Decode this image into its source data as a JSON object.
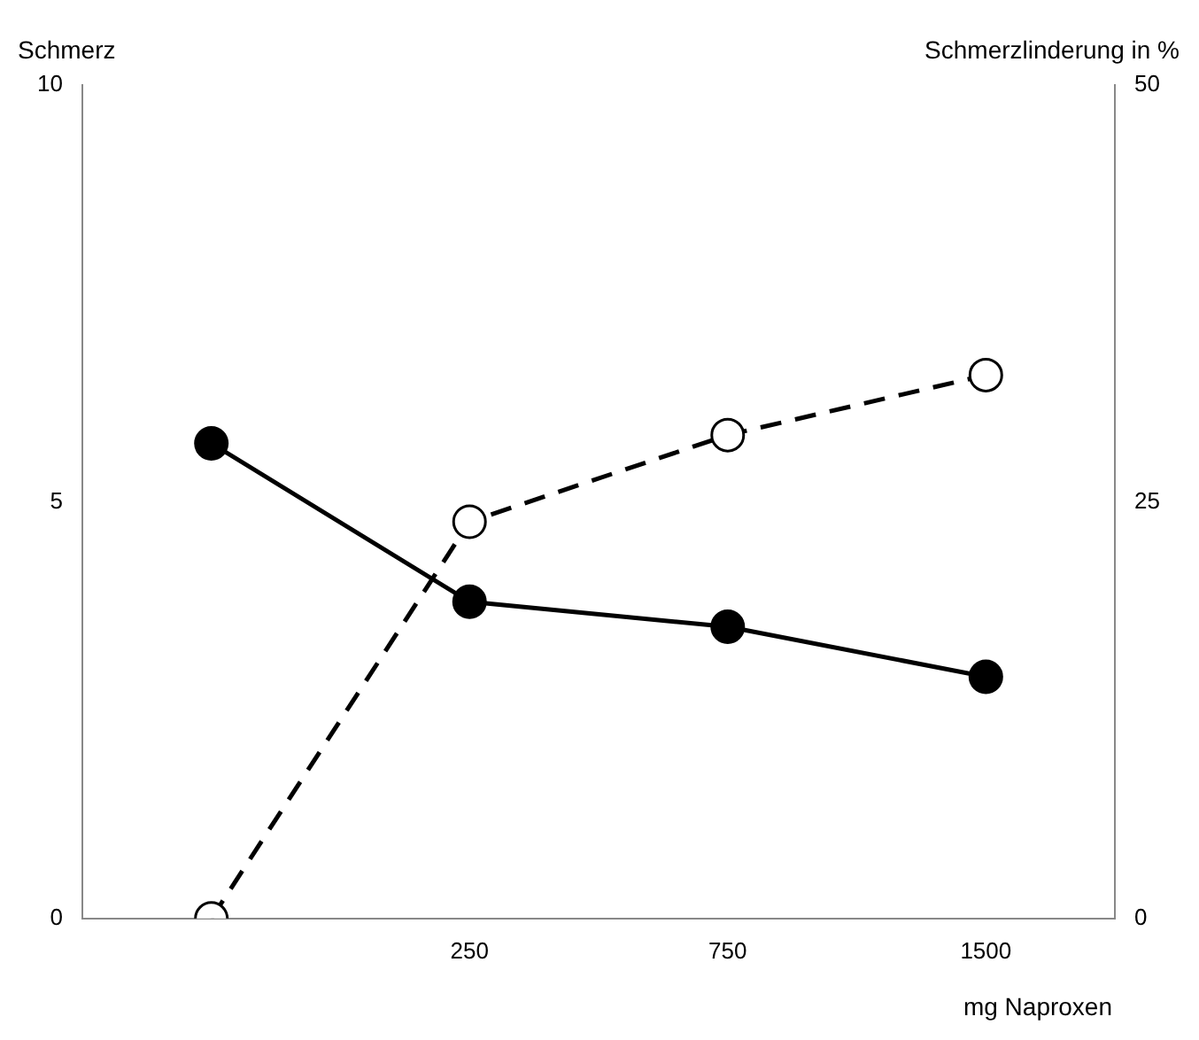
{
  "chart_data": {
    "type": "line",
    "ylabel": "Schmerz",
    "y2label": "Schmerzlinderung in %",
    "xlabel": "mg Naproxen",
    "categories": [
      null,
      "250",
      "750",
      "1500"
    ],
    "ylim": [
      0,
      10
    ],
    "yticks": [
      0,
      5,
      10
    ],
    "y2lim": [
      0,
      50
    ],
    "y2ticks": [
      0,
      25,
      50
    ],
    "grid": false,
    "legend": false,
    "marker": "circle",
    "series": [
      {
        "color": "#000000",
        "values": [
          5.7,
          3.8,
          3.5,
          2.9
        ],
        "line_style": "solid"
      },
      {
        "color": "#000000",
        "values": [
          0,
          23.8,
          29,
          32.6
        ],
        "axis": "y2",
        "line_style": "dashed"
      }
    ]
  }
}
